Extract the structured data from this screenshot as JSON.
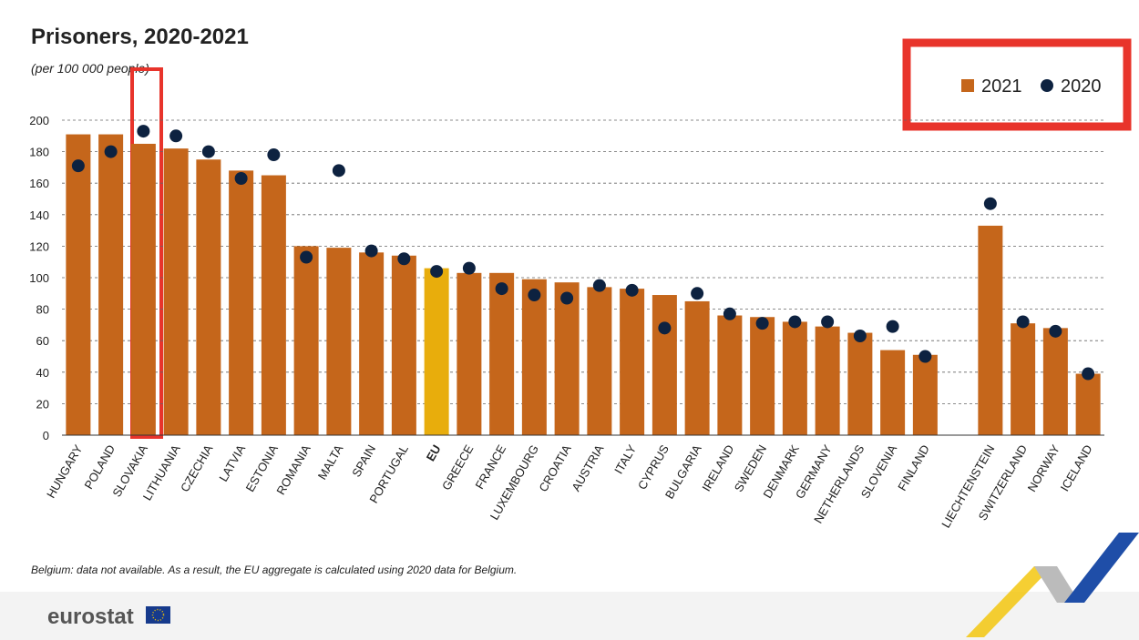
{
  "chart_data": {
    "type": "bar",
    "title": "Prisoners, 2020-2021",
    "subtitle": "(per 100 000 people)",
    "footnote": "Belgium: data not available. As a result, the EU aggregate is calculated using 2020 data for Belgium.",
    "logo": "eurostat",
    "categories": [
      "HUNGARY",
      "POLAND",
      "SLOVAKIA",
      "LITHUANIA",
      "CZECHIA",
      "LATVIA",
      "ESTONIA",
      "ROMANIA",
      "MALTA",
      "SPAIN",
      "PORTUGAL",
      "EU",
      "GREECE",
      "FRANCE",
      "LUXEMBOURG",
      "CROATIA",
      "AUSTRIA",
      "ITALY",
      "CYPRUS",
      "BULGARIA",
      "IRELAND",
      "SWEDEN",
      "DENMARK",
      "GERMANY",
      "NETHERLANDS",
      "SLOVENIA",
      "FINLAND",
      null,
      "LIECHTENSTEIN",
      "SWITZERLAND",
      "NORWAY",
      "ICELAND"
    ],
    "series": [
      {
        "name": "2021",
        "mark": "bar",
        "color": "#c5661b",
        "highlight": {
          "index": 11,
          "color": "#e8ad0c"
        },
        "values": [
          191,
          191,
          185,
          182,
          175,
          168,
          165,
          120,
          119,
          116,
          114,
          106,
          103,
          103,
          99,
          97,
          94,
          93,
          89,
          85,
          76,
          75,
          72,
          69,
          65,
          54,
          51,
          null,
          133,
          71,
          68,
          39
        ]
      },
      {
        "name": "2020",
        "mark": "dot",
        "color": "#0d2240",
        "values": [
          171,
          180,
          193,
          190,
          180,
          163,
          178,
          113,
          168,
          117,
          112,
          104,
          106,
          93,
          89,
          87,
          95,
          92,
          68,
          90,
          77,
          71,
          72,
          72,
          63,
          69,
          50,
          null,
          147,
          72,
          66,
          39
        ]
      }
    ],
    "ylim": [
      0,
      200
    ],
    "yticks": [
      0,
      20,
      40,
      60,
      80,
      100,
      120,
      140,
      160,
      180,
      200
    ],
    "grid": true,
    "legend": "top-right"
  }
}
